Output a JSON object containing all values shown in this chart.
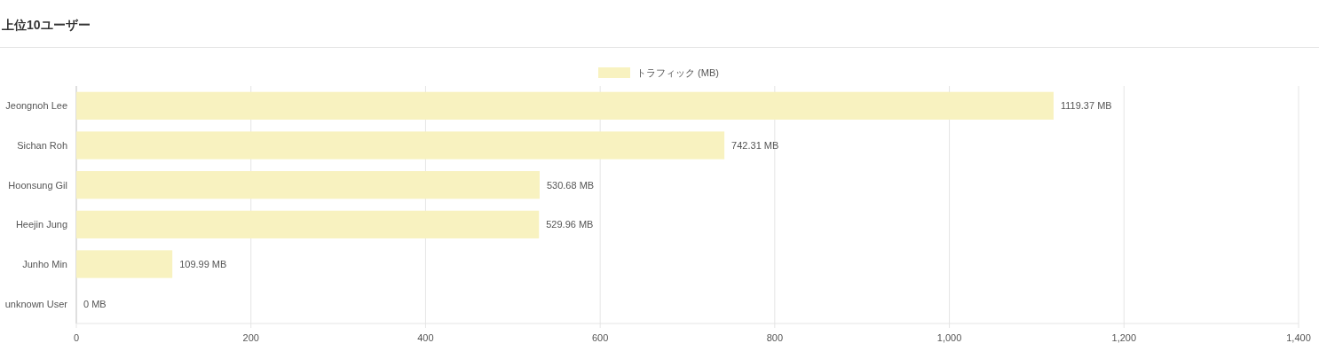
{
  "chart_data": {
    "type": "bar",
    "orientation": "horizontal",
    "title": "上位10ユーザー",
    "categories": [
      "Jeongnoh Lee",
      "Sichan Roh",
      "Hoonsung Gil",
      "Heejin Jung",
      "Junho Min",
      "unknown User"
    ],
    "series": [
      {
        "name": "トラフィック (MB)",
        "color": "#f8f2c0",
        "values": [
          1119.37,
          742.31,
          530.68,
          529.96,
          109.99,
          0
        ],
        "value_labels": [
          "1119.37 MB",
          "742.31 MB",
          "530.68 MB",
          "529.96 MB",
          "109.99 MB",
          "0 MB"
        ]
      }
    ],
    "xlim": [
      0,
      1400
    ],
    "xticks": [
      0,
      200,
      400,
      600,
      800,
      {
        "value": 1000,
        "label": "1,000"
      },
      {
        "value": 1200,
        "label": "1,200"
      },
      {
        "value": 1400,
        "label": "1,400"
      }
    ],
    "grid": "x",
    "legend": "top"
  }
}
